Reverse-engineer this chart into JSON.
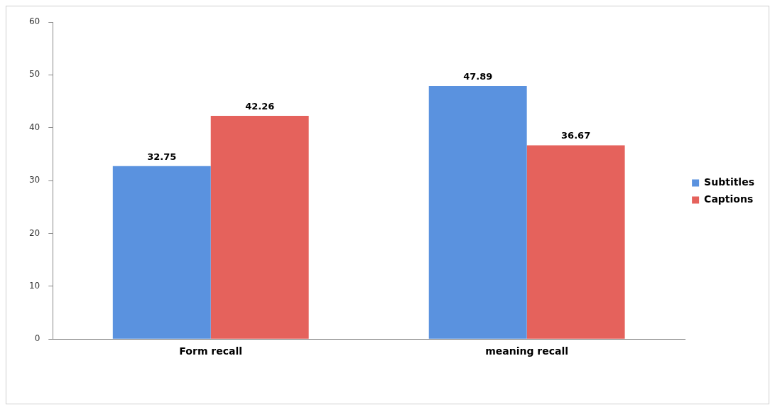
{
  "chart_data": {
    "type": "bar",
    "categories": [
      "Form recall",
      "meaning recall"
    ],
    "series": [
      {
        "name": "Subtitles",
        "color": "#5a92df",
        "values": [
          32.75,
          47.89
        ]
      },
      {
        "name": "Captions",
        "color": "#e5625c",
        "values": [
          42.26,
          36.67
        ]
      }
    ],
    "ylim": [
      0,
      60
    ],
    "yticks": [
      0,
      10,
      20,
      30,
      40,
      50,
      60
    ],
    "grid": false,
    "legend": "right",
    "data_labels": true
  }
}
